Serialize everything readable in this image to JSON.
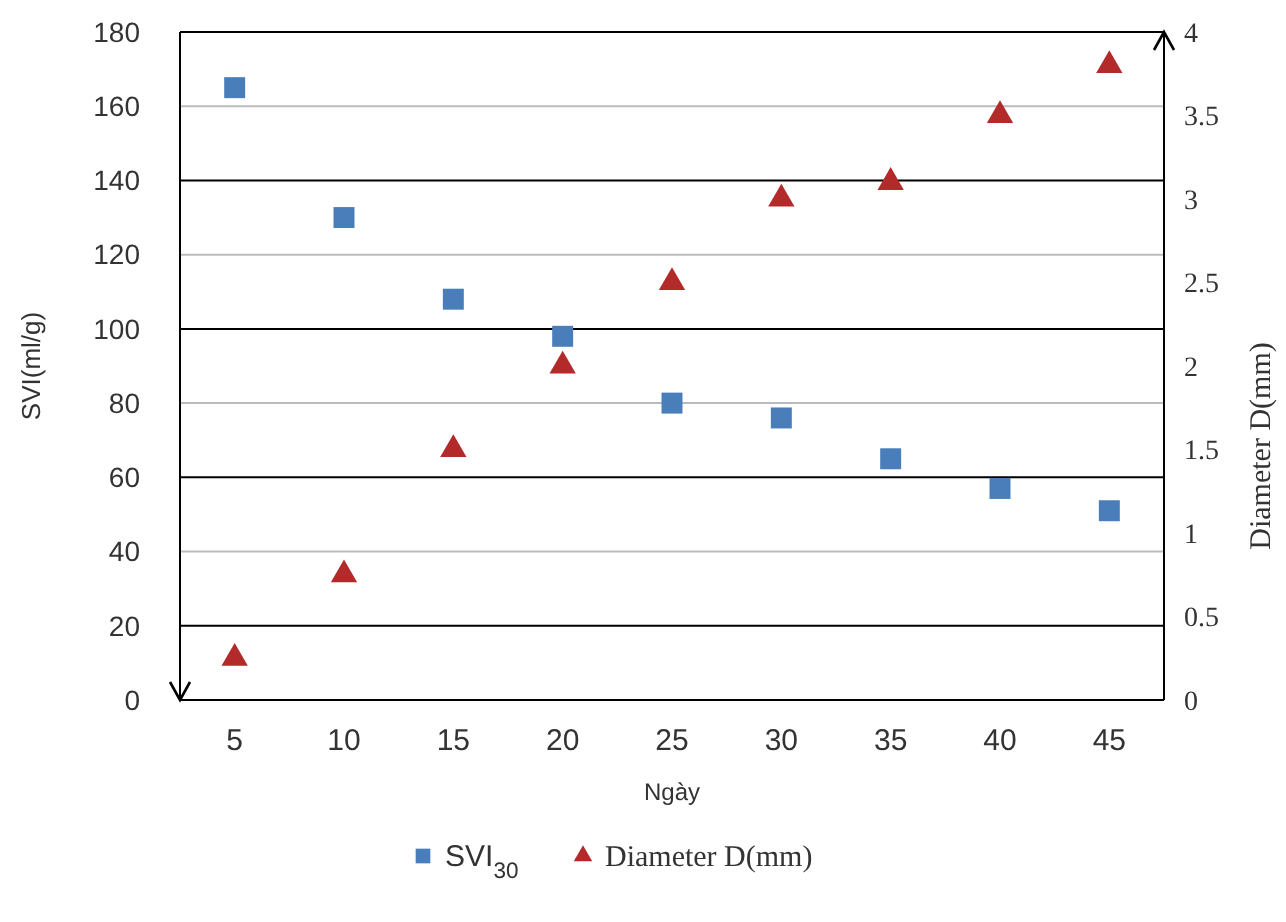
{
  "chart_data": {
    "type": "scatter",
    "xlabel": "Ngày",
    "ylabel": "SVI(ml/g)",
    "y2label": "Diameter  D(mm)",
    "categories": [
      "5",
      "10",
      "15",
      "20",
      "25",
      "30",
      "35",
      "40",
      "45"
    ],
    "series": [
      {
        "name": "SVI$_{30}$",
        "color": "#4a7ebb",
        "marker": "square",
        "values": [
          165,
          130,
          108,
          98,
          80,
          76,
          65,
          57,
          51
        ]
      },
      {
        "name": "Diameter  D(mm)",
        "color": "#b22a2a",
        "marker": "triangle",
        "axis": "y2",
        "values": [
          0.25,
          0.75,
          1.5,
          2,
          2.5,
          3,
          3.1,
          3.5,
          3.8
        ]
      }
    ],
    "ylim": [
      0,
      180
    ],
    "yticks": [
      0,
      20,
      40,
      60,
      80,
      100,
      120,
      140,
      160,
      180
    ],
    "y2lim": [
      0,
      4
    ],
    "y2ticks": [
      0,
      0.5,
      1,
      1.5,
      2,
      2.5,
      3,
      3.5,
      4
    ],
    "grid": "y",
    "legend": "bottom"
  }
}
